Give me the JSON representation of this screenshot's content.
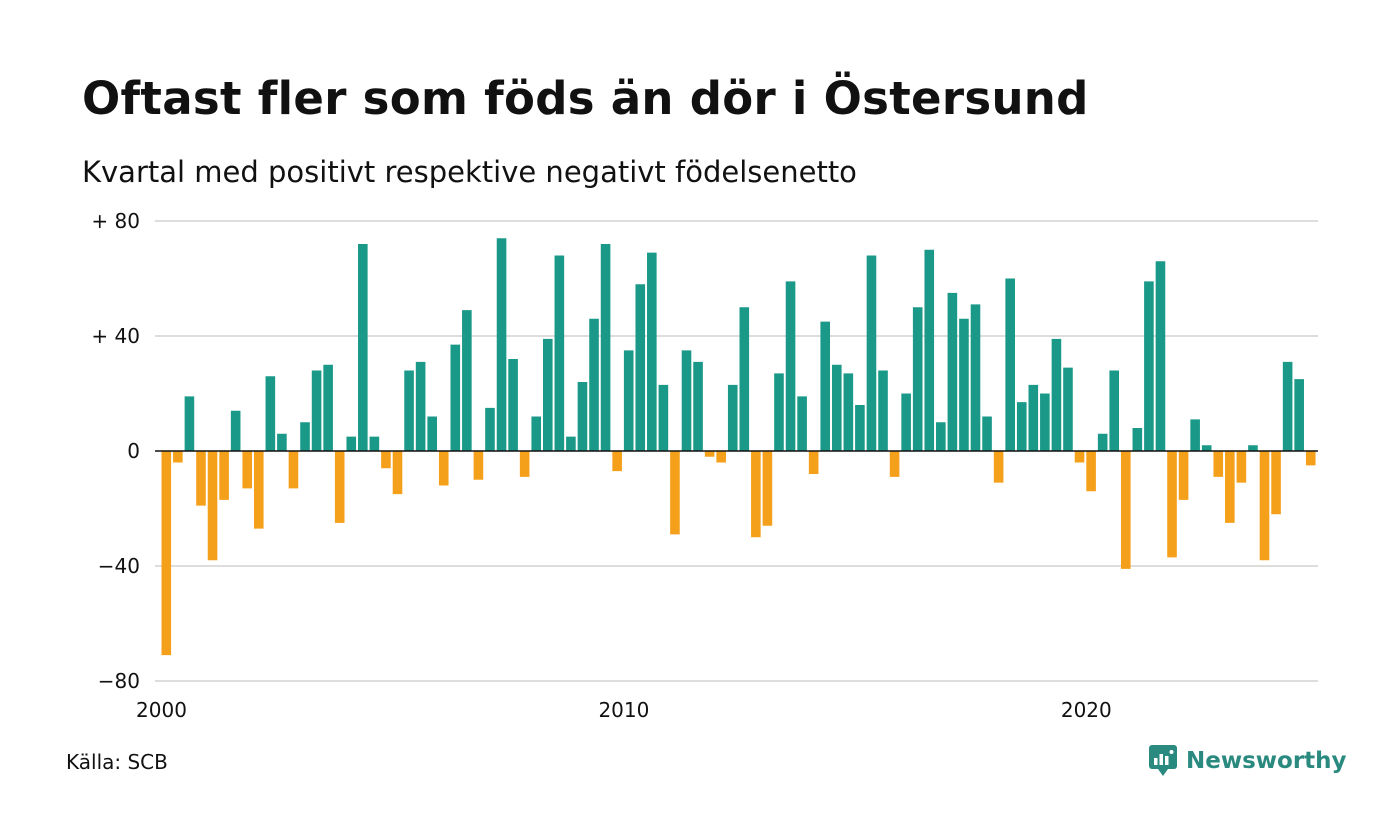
{
  "header": {
    "title": "Oftast fler som föds än dör i Östersund",
    "subtitle": "Kvartal med positivt respektive negativt födelsenetto"
  },
  "footer": {
    "source": "Källa: SCB",
    "brand": "Newsworthy"
  },
  "colors": {
    "positive": "#1a9988",
    "negative": "#f5a01a",
    "grid": "#dddddd",
    "brand": "#2b8a80"
  },
  "icons": {
    "brand_logo": "newsworthy-logo-icon"
  },
  "chart_data": {
    "type": "bar",
    "title": "Oftast fler som föds än dör i Östersund",
    "subtitle": "Kvartal med positivt respektive negativt födelsenetto",
    "ylim": [
      -80,
      80
    ],
    "yticks": [
      80,
      40,
      0,
      -40,
      -80
    ],
    "ytick_labels": [
      "+ 80",
      "+ 40",
      "0",
      "−40",
      "−80"
    ],
    "xticks": [
      2000,
      2010,
      2020
    ],
    "xlim": [
      2000,
      2025
    ],
    "grid": true,
    "legend": "none",
    "x_start": 2000,
    "values": [
      -71,
      -4,
      19,
      -19,
      -38,
      -17,
      14,
      -13,
      -27,
      26,
      6,
      -13,
      10,
      28,
      30,
      -25,
      5,
      72,
      5,
      -6,
      -15,
      28,
      31,
      12,
      -12,
      37,
      49,
      -10,
      15,
      74,
      32,
      -9,
      12,
      39,
      68,
      5,
      24,
      46,
      72,
      -7,
      35,
      58,
      69,
      23,
      -29,
      35,
      31,
      -2,
      -4,
      23,
      50,
      -30,
      -26,
      27,
      59,
      19,
      -8,
      45,
      30,
      27,
      16,
      68,
      28,
      -9,
      20,
      50,
      70,
      10,
      55,
      46,
      51,
      12,
      -11,
      60,
      17,
      23,
      20,
      39,
      29,
      -4,
      -14,
      6,
      28,
      -41,
      8,
      59,
      66,
      -37,
      -17,
      11,
      2,
      -9,
      -25,
      -11,
      2,
      -38,
      -22,
      31,
      25,
      -5
    ]
  }
}
